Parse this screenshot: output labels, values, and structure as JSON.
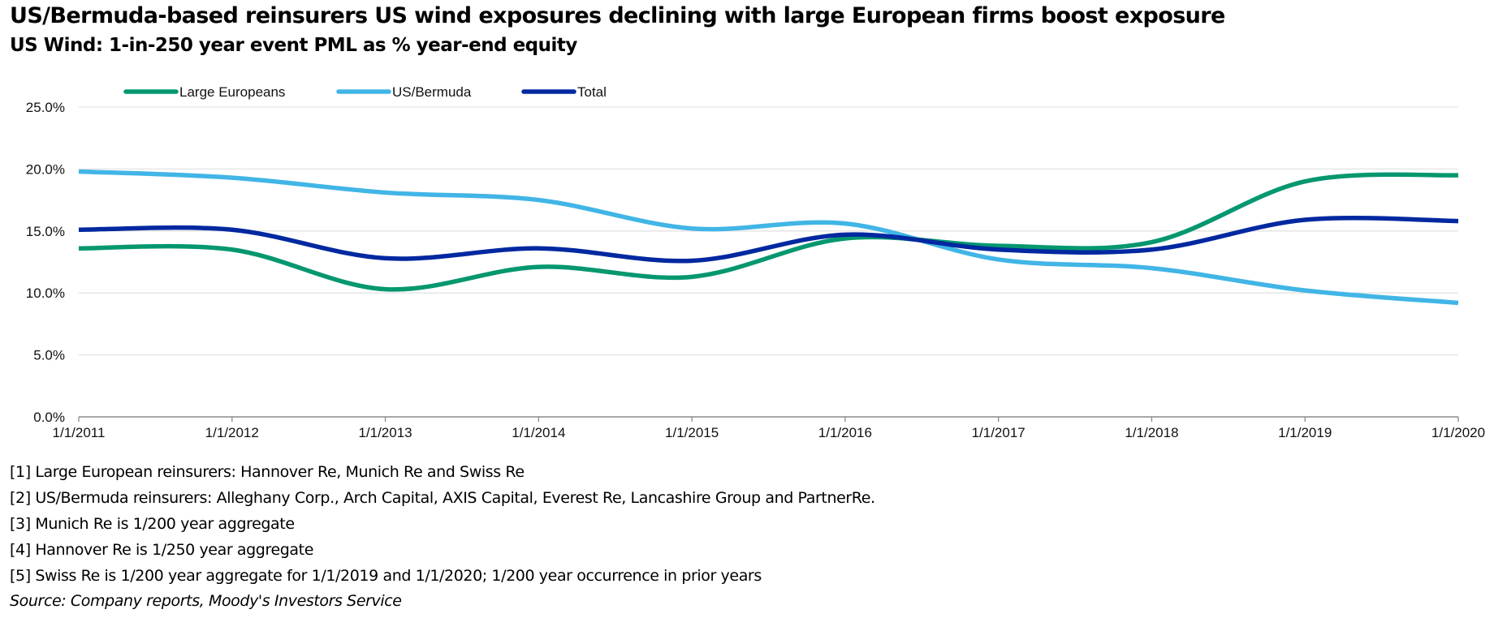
{
  "title": "US/Bermuda-based reinsurers US wind exposures declining with large European firms boost exposure",
  "subtitle": "US Wind: 1-in-250 year event PML as % year-end equity",
  "chart_data": {
    "type": "line",
    "smoothed": true,
    "title": "US Wind: 1-in-250 year event PML as % year-end equity",
    "xlabel": "",
    "ylabel": "",
    "x": [
      "1/1/2011",
      "1/1/2012",
      "1/1/2013",
      "1/1/2014",
      "1/1/2015",
      "1/1/2016",
      "1/1/2017",
      "1/1/2018",
      "1/1/2019",
      "1/1/2020"
    ],
    "ylim": [
      0,
      25
    ],
    "yticks": [
      0,
      5,
      10,
      15,
      20,
      25
    ],
    "ytick_labels": [
      "0.0%",
      "5.0%",
      "10.0%",
      "15.0%",
      "20.0%",
      "25.0%"
    ],
    "grid": true,
    "legend_position": "top",
    "series": [
      {
        "name": "Large Europeans",
        "color": "#05976F",
        "values": [
          13.6,
          13.5,
          10.3,
          12.1,
          11.3,
          14.4,
          13.8,
          14.1,
          19.0,
          19.5
        ]
      },
      {
        "name": "US/Bermuda",
        "color": "#41B5E6",
        "values": [
          19.8,
          19.3,
          18.1,
          17.5,
          15.2,
          15.6,
          12.7,
          12.0,
          10.2,
          9.2
        ]
      },
      {
        "name": "Total",
        "color": "#0028A0",
        "values": [
          15.1,
          15.1,
          12.8,
          13.6,
          12.6,
          14.7,
          13.5,
          13.5,
          15.9,
          15.8
        ]
      }
    ]
  },
  "notes": [
    "[1] Large European reinsurers: Hannover Re, Munich Re and Swiss Re",
    "[2] US/Bermuda reinsurers: Alleghany Corp., Arch Capital, AXIS Capital, Everest Re, Lancashire Group and PartnerRe.",
    "[3] Munich Re is 1/200 year aggregate",
    "[4] Hannover Re is 1/250 year aggregate",
    "[5] Swiss Re is 1/200 year aggregate for 1/1/2019 and 1/1/2020; 1/200 year occurrence in prior years"
  ],
  "source": "Source: Company reports, Moody's Investors Service"
}
